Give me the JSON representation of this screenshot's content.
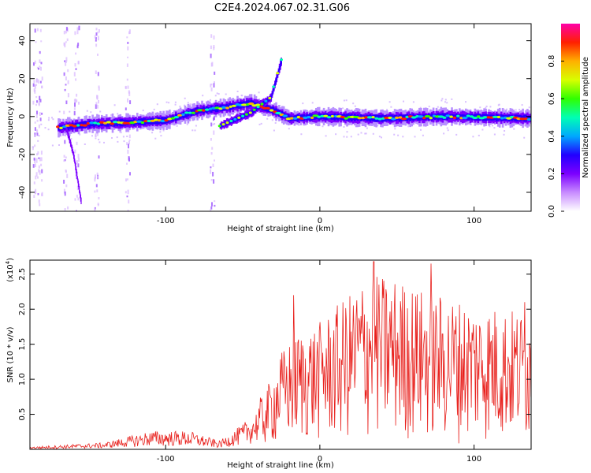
{
  "figure": {
    "title": "C2E4.2024.067.02.31.G06"
  },
  "chart_data": [
    {
      "type": "heatmap",
      "xlabel": "Height of straight line (km)",
      "ylabel": "Frequency (Hz)",
      "xlim": [
        -188,
        137
      ],
      "ylim": [
        -50,
        49
      ],
      "xticks": [
        -100,
        0,
        100
      ],
      "yticks": [
        -40,
        -20,
        0,
        20,
        40
      ],
      "colorbar": {
        "label": "Normalized spectral amplitude",
        "range": [
          0,
          1
        ],
        "ticks": [
          "0.0",
          "0.2",
          "0.4",
          "0.6",
          "0.8"
        ],
        "colors": [
          "#ffffff",
          "#c88cff",
          "#7c00ff",
          "#2200ff",
          "#00a8ff",
          "#00ffb4",
          "#30ff00",
          "#d8ff00",
          "#ffb000",
          "#ff2000",
          "#ff00a8"
        ]
      },
      "main_trace": [
        {
          "x": -170,
          "y": -6
        },
        {
          "x": -150,
          "y": -4
        },
        {
          "x": -120,
          "y": -3
        },
        {
          "x": -100,
          "y": -2
        },
        {
          "x": -80,
          "y": 3
        },
        {
          "x": -60,
          "y": 5
        },
        {
          "x": -45,
          "y": 7
        },
        {
          "x": -30,
          "y": 3
        },
        {
          "x": -20,
          "y": -1
        },
        {
          "x": 0,
          "y": 0
        },
        {
          "x": 40,
          "y": -1
        },
        {
          "x": 80,
          "y": 0
        },
        {
          "x": 137,
          "y": -1
        }
      ],
      "secondary_trace": [
        {
          "x": -65,
          "y": -5
        },
        {
          "x": -45,
          "y": 2
        },
        {
          "x": -32,
          "y": 10
        },
        {
          "x": -25,
          "y": 30
        }
      ],
      "low_branch": [
        {
          "x": -165,
          "y": -5
        },
        {
          "x": -160,
          "y": -20
        },
        {
          "x": -155,
          "y": -45
        }
      ]
    },
    {
      "type": "line",
      "xlabel": "Height of straight line (km)",
      "ylabel": "SNR (10 * v/v)",
      "yunit_label": "(x10",
      "yunit_exp": "4",
      "xlim": [
        -188,
        137
      ],
      "ylim": [
        0,
        2.7
      ],
      "xticks": [
        -100,
        0,
        100
      ],
      "yticks": [
        "0.5",
        "1.0",
        "1.5",
        "2.0",
        "2.5"
      ],
      "color": "#e8201c",
      "envelope": [
        {
          "x": -188,
          "y": 0.03
        },
        {
          "x": -140,
          "y": 0.08
        },
        {
          "x": -110,
          "y": 0.22
        },
        {
          "x": -85,
          "y": 0.22
        },
        {
          "x": -65,
          "y": 0.1
        },
        {
          "x": -50,
          "y": 0.3
        },
        {
          "x": -35,
          "y": 0.6
        },
        {
          "x": -25,
          "y": 1.0
        },
        {
          "x": -15,
          "y": 1.2
        },
        {
          "x": 0,
          "y": 1.3
        },
        {
          "x": 20,
          "y": 1.6
        },
        {
          "x": 30,
          "y": 1.8
        },
        {
          "x": 50,
          "y": 1.75
        },
        {
          "x": 70,
          "y": 1.6
        },
        {
          "x": 100,
          "y": 1.5
        },
        {
          "x": 137,
          "y": 1.4
        }
      ],
      "peaks": [
        {
          "x": -17,
          "y": 2.2
        },
        {
          "x": 35,
          "y": 2.68
        },
        {
          "x": 72,
          "y": 2.65
        },
        {
          "x": 133,
          "y": 2.1
        }
      ]
    }
  ]
}
